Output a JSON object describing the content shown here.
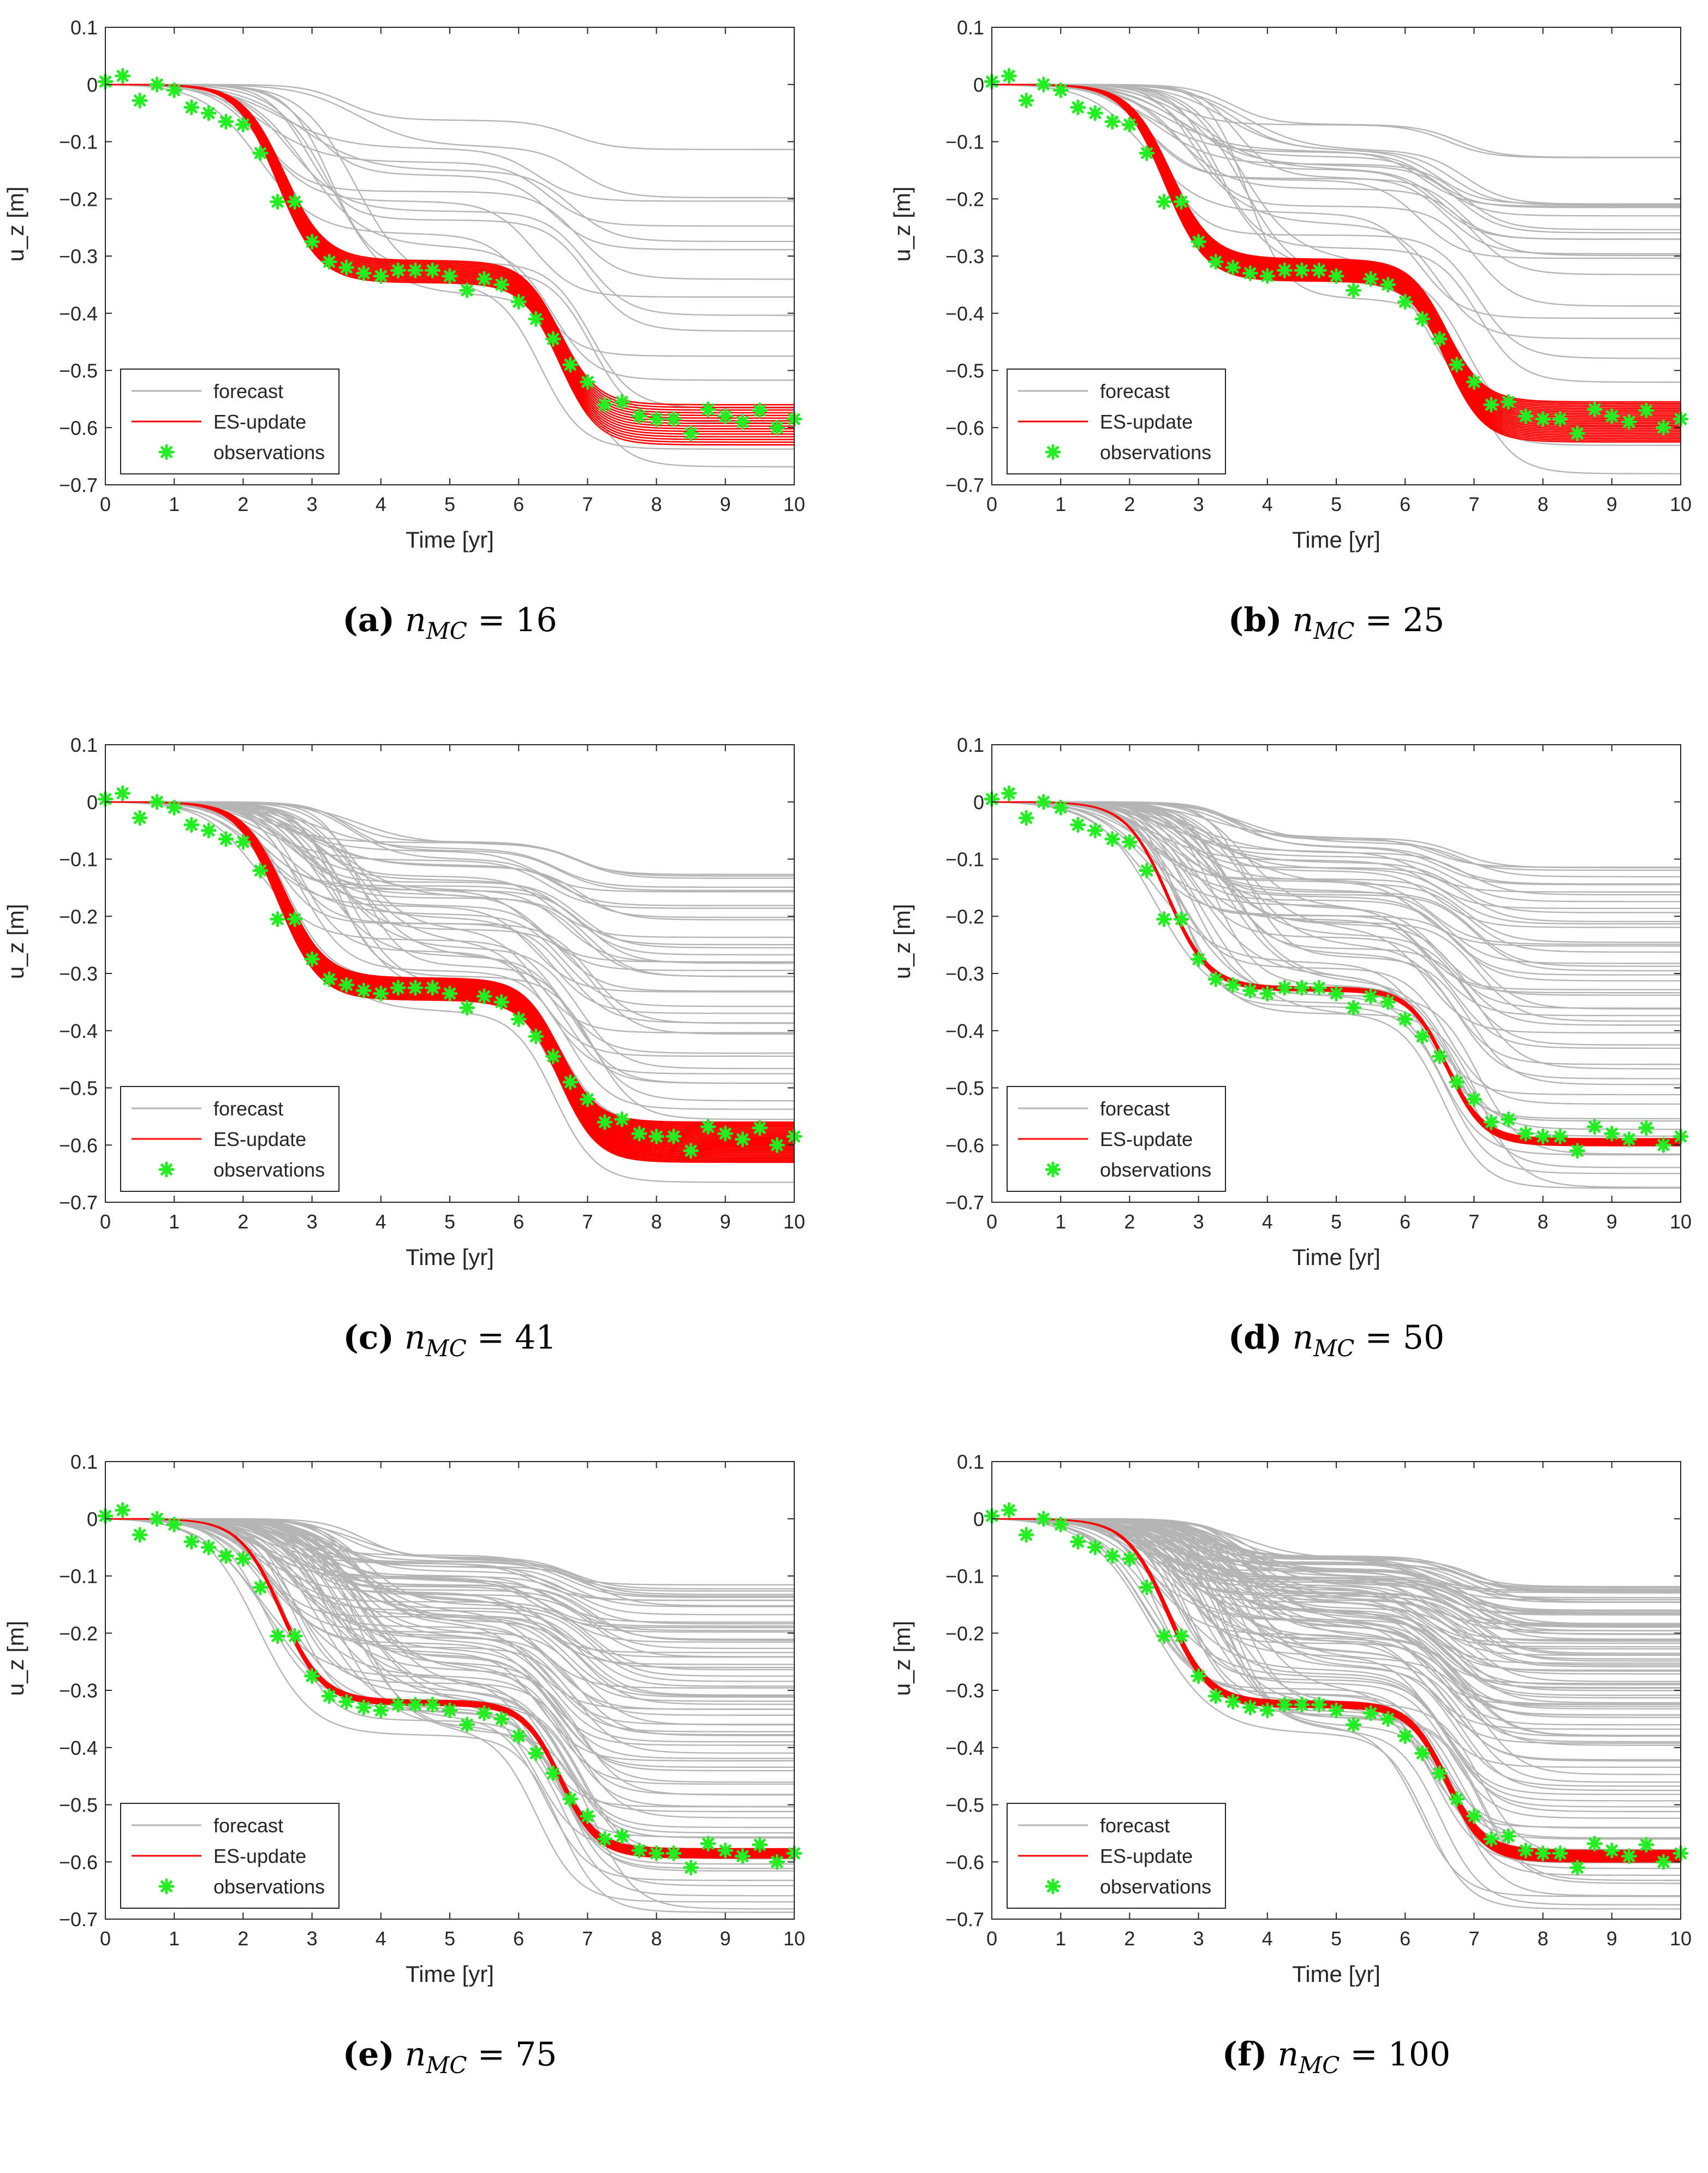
{
  "chart_data": [
    {
      "type": "line",
      "panel": "a",
      "caption_letter": "(a)",
      "caption_var": "n",
      "caption_sub": "MC",
      "caption_eq": " = 16",
      "xlabel": "Time [yr]",
      "ylabel": "u_z [m]",
      "xlim": [
        0,
        10
      ],
      "ylim": [
        -0.7,
        0.1
      ],
      "x_ticks": [
        "0",
        "1",
        "2",
        "3",
        "4",
        "5",
        "6",
        "7",
        "8",
        "9",
        "10"
      ],
      "y_ticks": [
        "0.1",
        "0",
        "−0.1",
        "−0.2",
        "−0.3",
        "−0.4",
        "−0.5",
        "−0.6",
        "−0.7"
      ],
      "legend": [
        "forecast",
        "ES-update",
        "observations"
      ],
      "legend_position": "bottom-left",
      "forecast_members": 16,
      "forecast_final_values": [
        -0.12,
        -0.19,
        -0.21,
        -0.25,
        -0.28,
        -0.29,
        -0.35,
        -0.38,
        -0.41,
        -0.44,
        -0.48,
        -0.52,
        -0.56,
        -0.6,
        -0.63,
        -0.675
      ],
      "update_mean_final": -0.595,
      "update_spread": 0.035,
      "observations": {
        "x": [
          0,
          0.25,
          0.5,
          0.75,
          1,
          1.25,
          1.5,
          1.75,
          2,
          2.25,
          2.5,
          2.75,
          3,
          3.25,
          3.5,
          3.75,
          4,
          4.25,
          4.5,
          4.75,
          5,
          5.25,
          5.5,
          5.75,
          6,
          6.25,
          6.5,
          6.75,
          7,
          7.25,
          7.5,
          7.75,
          8,
          8.25,
          8.5,
          8.75,
          9,
          9.25,
          9.5,
          9.75,
          10
        ],
        "y": [
          0.005,
          0.015,
          -0.028,
          0.0,
          -0.01,
          -0.04,
          -0.05,
          -0.065,
          -0.07,
          -0.12,
          -0.205,
          -0.205,
          -0.275,
          -0.31,
          -0.32,
          -0.33,
          -0.335,
          -0.325,
          -0.325,
          -0.325,
          -0.335,
          -0.36,
          -0.34,
          -0.35,
          -0.38,
          -0.41,
          -0.445,
          -0.49,
          -0.52,
          -0.56,
          -0.555,
          -0.58,
          -0.585,
          -0.585,
          -0.61,
          -0.568,
          -0.58,
          -0.59,
          -0.57,
          -0.6,
          -0.585
        ]
      }
    },
    {
      "type": "line",
      "panel": "b",
      "caption_letter": "(b)",
      "caption_var": "n",
      "caption_sub": "MC",
      "caption_eq": " = 25",
      "xlabel": "Time [yr]",
      "ylabel": "u_z [m]",
      "xlim": [
        0,
        10
      ],
      "ylim": [
        -0.7,
        0.1
      ],
      "x_ticks": [
        "0",
        "1",
        "2",
        "3",
        "4",
        "5",
        "6",
        "7",
        "8",
        "9",
        "10"
      ],
      "y_ticks": [
        "0.1",
        "0",
        "−0.1",
        "−0.2",
        "−0.3",
        "−0.4",
        "−0.5",
        "−0.6",
        "−0.7"
      ],
      "legend": [
        "forecast",
        "ES-update",
        "observations"
      ],
      "legend_position": "bottom-left",
      "forecast_members": 25,
      "forecast_final_values": [
        -0.13,
        -0.2,
        -0.21,
        -0.22,
        -0.25,
        -0.28,
        -0.29,
        -0.3,
        -0.34,
        -0.38,
        -0.41,
        -0.44,
        -0.48,
        -0.52,
        -0.56,
        -0.6,
        -0.63,
        -0.675
      ],
      "update_mean_final": -0.59,
      "update_spread": 0.035,
      "observations": {
        "x": [
          0,
          0.25,
          0.5,
          0.75,
          1,
          1.25,
          1.5,
          1.75,
          2,
          2.25,
          2.5,
          2.75,
          3,
          3.25,
          3.5,
          3.75,
          4,
          4.25,
          4.5,
          4.75,
          5,
          5.25,
          5.5,
          5.75,
          6,
          6.25,
          6.5,
          6.75,
          7,
          7.25,
          7.5,
          7.75,
          8,
          8.25,
          8.5,
          8.75,
          9,
          9.25,
          9.5,
          9.75,
          10
        ],
        "y": [
          0.005,
          0.015,
          -0.028,
          0.0,
          -0.01,
          -0.04,
          -0.05,
          -0.065,
          -0.07,
          -0.12,
          -0.205,
          -0.205,
          -0.275,
          -0.31,
          -0.32,
          -0.33,
          -0.335,
          -0.325,
          -0.325,
          -0.325,
          -0.335,
          -0.36,
          -0.34,
          -0.35,
          -0.38,
          -0.41,
          -0.445,
          -0.49,
          -0.52,
          -0.56,
          -0.555,
          -0.58,
          -0.585,
          -0.585,
          -0.61,
          -0.568,
          -0.58,
          -0.59,
          -0.57,
          -0.6,
          -0.585
        ]
      }
    },
    {
      "type": "line",
      "panel": "c",
      "caption_letter": "(c)",
      "caption_var": "n",
      "caption_sub": "MC",
      "caption_eq": " = 41",
      "xlabel": "Time [yr]",
      "ylabel": "u_z [m]",
      "xlim": [
        0,
        10
      ],
      "ylim": [
        -0.7,
        0.1
      ],
      "x_ticks": [
        "0",
        "1",
        "2",
        "3",
        "4",
        "5",
        "6",
        "7",
        "8",
        "9",
        "10"
      ],
      "y_ticks": [
        "0.1",
        "0",
        "−0.1",
        "−0.2",
        "−0.3",
        "−0.4",
        "−0.5",
        "−0.6",
        "−0.7"
      ],
      "legend": [
        "forecast",
        "ES-update",
        "observations"
      ],
      "legend_position": "bottom-left",
      "forecast_members": 41,
      "forecast_final_values": [
        -0.12,
        -0.14,
        -0.16,
        -0.19,
        -0.21,
        -0.24,
        -0.26,
        -0.28,
        -0.29,
        -0.31,
        -0.34,
        -0.36,
        -0.38,
        -0.41,
        -0.44,
        -0.47,
        -0.5,
        -0.53,
        -0.56,
        -0.6,
        -0.63,
        -0.675
      ],
      "update_mean_final": -0.595,
      "update_spread": 0.035,
      "observations": {
        "x": [
          0,
          0.25,
          0.5,
          0.75,
          1,
          1.25,
          1.5,
          1.75,
          2,
          2.25,
          2.5,
          2.75,
          3,
          3.25,
          3.5,
          3.75,
          4,
          4.25,
          4.5,
          4.75,
          5,
          5.25,
          5.5,
          5.75,
          6,
          6.25,
          6.5,
          6.75,
          7,
          7.25,
          7.5,
          7.75,
          8,
          8.25,
          8.5,
          8.75,
          9,
          9.25,
          9.5,
          9.75,
          10
        ],
        "y": [
          0.005,
          0.015,
          -0.028,
          0.0,
          -0.01,
          -0.04,
          -0.05,
          -0.065,
          -0.07,
          -0.12,
          -0.205,
          -0.205,
          -0.275,
          -0.31,
          -0.32,
          -0.33,
          -0.335,
          -0.325,
          -0.325,
          -0.325,
          -0.335,
          -0.36,
          -0.34,
          -0.35,
          -0.38,
          -0.41,
          -0.445,
          -0.49,
          -0.52,
          -0.56,
          -0.555,
          -0.58,
          -0.585,
          -0.585,
          -0.61,
          -0.568,
          -0.58,
          -0.59,
          -0.57,
          -0.6,
          -0.585
        ]
      }
    },
    {
      "type": "line",
      "panel": "d",
      "caption_letter": "(d)",
      "caption_var": "n",
      "caption_sub": "MC",
      "caption_eq": " = 50",
      "xlabel": "Time [yr]",
      "ylabel": "u_z [m]",
      "xlim": [
        0,
        10
      ],
      "ylim": [
        -0.7,
        0.1
      ],
      "x_ticks": [
        "0",
        "1",
        "2",
        "3",
        "4",
        "5",
        "6",
        "7",
        "8",
        "9",
        "10"
      ],
      "y_ticks": [
        "0.1",
        "0",
        "−0.1",
        "−0.2",
        "−0.3",
        "−0.4",
        "−0.5",
        "−0.6",
        "−0.7"
      ],
      "legend": [
        "forecast",
        "ES-update",
        "observations"
      ],
      "legend_position": "bottom-left",
      "forecast_members": 50,
      "forecast_final_values": [
        -0.12,
        -0.14,
        -0.16,
        -0.18,
        -0.2,
        -0.22,
        -0.24,
        -0.26,
        -0.28,
        -0.3,
        -0.32,
        -0.34,
        -0.36,
        -0.38,
        -0.4,
        -0.43,
        -0.46,
        -0.49,
        -0.52,
        -0.55,
        -0.58,
        -0.61,
        -0.64,
        -0.675
      ],
      "update_mean_final": -0.595,
      "update_spread": 0.006,
      "observations": {
        "x": [
          0,
          0.25,
          0.5,
          0.75,
          1,
          1.25,
          1.5,
          1.75,
          2,
          2.25,
          2.5,
          2.75,
          3,
          3.25,
          3.5,
          3.75,
          4,
          4.25,
          4.5,
          4.75,
          5,
          5.25,
          5.5,
          5.75,
          6,
          6.25,
          6.5,
          6.75,
          7,
          7.25,
          7.5,
          7.75,
          8,
          8.25,
          8.5,
          8.75,
          9,
          9.25,
          9.5,
          9.75,
          10
        ],
        "y": [
          0.005,
          0.015,
          -0.028,
          0.0,
          -0.01,
          -0.04,
          -0.05,
          -0.065,
          -0.07,
          -0.12,
          -0.205,
          -0.205,
          -0.275,
          -0.31,
          -0.32,
          -0.33,
          -0.335,
          -0.325,
          -0.325,
          -0.325,
          -0.335,
          -0.36,
          -0.34,
          -0.35,
          -0.38,
          -0.41,
          -0.445,
          -0.49,
          -0.52,
          -0.56,
          -0.555,
          -0.58,
          -0.585,
          -0.585,
          -0.61,
          -0.568,
          -0.58,
          -0.59,
          -0.57,
          -0.6,
          -0.585
        ]
      }
    },
    {
      "type": "line",
      "panel": "e",
      "caption_letter": "(e)",
      "caption_var": "n",
      "caption_sub": "MC",
      "caption_eq": " = 75",
      "xlabel": "Time [yr]",
      "ylabel": "u_z [m]",
      "xlim": [
        0,
        10
      ],
      "ylim": [
        -0.7,
        0.1
      ],
      "x_ticks": [
        "0",
        "1",
        "2",
        "3",
        "4",
        "5",
        "6",
        "7",
        "8",
        "9",
        "10"
      ],
      "y_ticks": [
        "0.1",
        "0",
        "−0.1",
        "−0.2",
        "−0.3",
        "−0.4",
        "−0.5",
        "−0.6",
        "−0.7"
      ],
      "legend": [
        "forecast",
        "ES-update",
        "observations"
      ],
      "legend_position": "bottom-left",
      "forecast_members": 75,
      "forecast_final_values": [
        -0.12,
        -0.13,
        -0.14,
        -0.15,
        -0.16,
        -0.18,
        -0.19,
        -0.2,
        -0.21,
        -0.22,
        -0.24,
        -0.25,
        -0.26,
        -0.28,
        -0.29,
        -0.3,
        -0.32,
        -0.33,
        -0.34,
        -0.36,
        -0.37,
        -0.38,
        -0.4,
        -0.42,
        -0.44,
        -0.46,
        -0.48,
        -0.5,
        -0.52,
        -0.54,
        -0.56,
        -0.58,
        -0.6,
        -0.62,
        -0.64,
        -0.66,
        -0.68
      ],
      "update_mean_final": -0.585,
      "update_spread": 0.008,
      "observations": {
        "x": [
          0,
          0.25,
          0.5,
          0.75,
          1,
          1.25,
          1.5,
          1.75,
          2,
          2.25,
          2.5,
          2.75,
          3,
          3.25,
          3.5,
          3.75,
          4,
          4.25,
          4.5,
          4.75,
          5,
          5.25,
          5.5,
          5.75,
          6,
          6.25,
          6.5,
          6.75,
          7,
          7.25,
          7.5,
          7.75,
          8,
          8.25,
          8.5,
          8.75,
          9,
          9.25,
          9.5,
          9.75,
          10
        ],
        "y": [
          0.005,
          0.015,
          -0.028,
          0.0,
          -0.01,
          -0.04,
          -0.05,
          -0.065,
          -0.07,
          -0.12,
          -0.205,
          -0.205,
          -0.275,
          -0.31,
          -0.32,
          -0.33,
          -0.335,
          -0.325,
          -0.325,
          -0.325,
          -0.335,
          -0.36,
          -0.34,
          -0.35,
          -0.38,
          -0.41,
          -0.445,
          -0.49,
          -0.52,
          -0.56,
          -0.555,
          -0.58,
          -0.585,
          -0.585,
          -0.61,
          -0.568,
          -0.58,
          -0.59,
          -0.57,
          -0.6,
          -0.585
        ]
      }
    },
    {
      "type": "line",
      "panel": "f",
      "caption_letter": "(f)",
      "caption_var": "n",
      "caption_sub": "MC",
      "caption_eq": " = 100",
      "xlabel": "Time [yr]",
      "ylabel": "u_z [m]",
      "xlim": [
        0,
        10
      ],
      "ylim": [
        -0.7,
        0.1
      ],
      "x_ticks": [
        "0",
        "1",
        "2",
        "3",
        "4",
        "5",
        "6",
        "7",
        "8",
        "9",
        "10"
      ],
      "y_ticks": [
        "0.1",
        "0",
        "−0.1",
        "−0.2",
        "−0.3",
        "−0.4",
        "−0.5",
        "−0.6",
        "−0.7"
      ],
      "legend": [
        "forecast",
        "ES-update",
        "observations"
      ],
      "legend_position": "bottom-left",
      "forecast_members": 100,
      "forecast_final_values": [
        -0.12,
        -0.125,
        -0.13,
        -0.14,
        -0.15,
        -0.16,
        -0.17,
        -0.18,
        -0.19,
        -0.2,
        -0.21,
        -0.22,
        -0.23,
        -0.24,
        -0.25,
        -0.26,
        -0.27,
        -0.28,
        -0.29,
        -0.3,
        -0.31,
        -0.32,
        -0.33,
        -0.34,
        -0.35,
        -0.36,
        -0.37,
        -0.38,
        -0.4,
        -0.42,
        -0.44,
        -0.46,
        -0.48,
        -0.5,
        -0.52,
        -0.54,
        -0.56,
        -0.58,
        -0.6,
        -0.62,
        -0.64,
        -0.66,
        -0.68
      ],
      "update_mean_final": -0.59,
      "update_spread": 0.01,
      "observations": {
        "x": [
          0,
          0.25,
          0.5,
          0.75,
          1,
          1.25,
          1.5,
          1.75,
          2,
          2.25,
          2.5,
          2.75,
          3,
          3.25,
          3.5,
          3.75,
          4,
          4.25,
          4.5,
          4.75,
          5,
          5.25,
          5.5,
          5.75,
          6,
          6.25,
          6.5,
          6.75,
          7,
          7.25,
          7.5,
          7.75,
          8,
          8.25,
          8.5,
          8.75,
          9,
          9.25,
          9.5,
          9.75,
          10
        ],
        "y": [
          0.005,
          0.015,
          -0.028,
          0.0,
          -0.01,
          -0.04,
          -0.05,
          -0.065,
          -0.07,
          -0.12,
          -0.205,
          -0.205,
          -0.275,
          -0.31,
          -0.32,
          -0.33,
          -0.335,
          -0.325,
          -0.325,
          -0.325,
          -0.335,
          -0.36,
          -0.34,
          -0.35,
          -0.38,
          -0.41,
          -0.445,
          -0.49,
          -0.52,
          -0.56,
          -0.555,
          -0.58,
          -0.585,
          -0.585,
          -0.61,
          -0.568,
          -0.58,
          -0.59,
          -0.57,
          -0.6,
          -0.585
        ]
      }
    }
  ],
  "colors": {
    "forecast": "#b4b4b4",
    "update": "#ff0000",
    "observations": "#22ee22",
    "axes": "#262626"
  }
}
